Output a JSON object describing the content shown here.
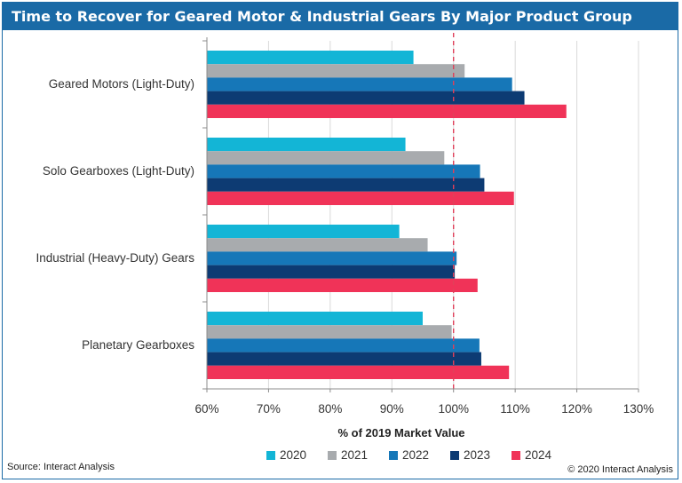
{
  "source": "Source: Interact Analysis",
  "copyright": "© 2020 Interact Analysis",
  "chart_data": {
    "type": "bar",
    "orientation": "horizontal",
    "title": "Time to Recover for Geared Motor & Industrial Gears By Major Product Group",
    "xlabel": "% of 2019 Market Value",
    "ylabel": "",
    "xlim": [
      60,
      130
    ],
    "xticks": [
      "60%",
      "70%",
      "80%",
      "90%",
      "100%",
      "110%",
      "120%",
      "130%"
    ],
    "reference_line": 100,
    "grid": true,
    "legend_position": "bottom",
    "categories": [
      "Geared Motors (Light-Duty)",
      "Solo Gearboxes (Light-Duty)",
      "Industrial (Heavy-Duty) Gears",
      "Planetary Gearboxes"
    ],
    "series": [
      {
        "name": "2020",
        "color": "#13b5d6",
        "values": [
          93.5,
          92.2,
          91.2,
          95.0
        ]
      },
      {
        "name": "2021",
        "color": "#a8abae",
        "values": [
          101.8,
          98.5,
          95.8,
          99.7
        ]
      },
      {
        "name": "2022",
        "color": "#1677b8",
        "values": [
          109.5,
          104.3,
          100.5,
          104.2
        ]
      },
      {
        "name": "2023",
        "color": "#0d3b73",
        "values": [
          111.5,
          105.0,
          100.2,
          104.5
        ]
      },
      {
        "name": "2024",
        "color": "#f03358",
        "values": [
          118.3,
          109.8,
          103.9,
          109.0
        ]
      }
    ]
  }
}
